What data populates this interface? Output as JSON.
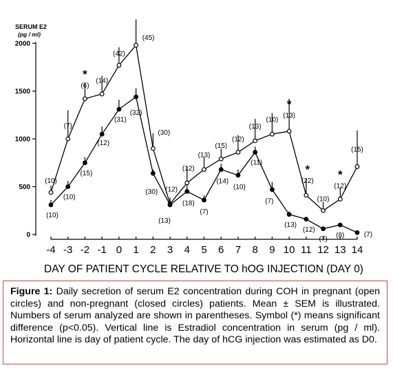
{
  "chart_data": {
    "type": "line",
    "title": "SERUM E2",
    "unit": "(pg / ml)",
    "xlabel": "DAY OF PATIENT CYCLE RELATIVE TO hOG INJECTION (DAY 0)",
    "ylabel": "",
    "xlim": [
      -4,
      14
    ],
    "ylim": [
      0,
      2000
    ],
    "yticks": [
      0,
      500,
      1000,
      1500,
      2000
    ],
    "x": [
      -4,
      -3,
      -2,
      -1,
      0,
      1,
      2,
      3,
      4,
      5,
      6,
      7,
      8,
      9,
      10,
      11,
      12,
      13,
      14
    ],
    "series": [
      {
        "marker": "open-circle",
        "values": [
          440,
          1000,
          1420,
          1470,
          1770,
          1980,
          900,
          320,
          540,
          680,
          790,
          860,
          980,
          1050,
          1080,
          410,
          250,
          370,
          710
        ],
        "err": [
          70,
          300,
          170,
          190,
          190,
          270,
          160,
          70,
          170,
          130,
          110,
          180,
          230,
          220,
          340,
          170,
          90,
          120,
          380
        ],
        "counts": [
          "(10)",
          "(7)",
          "(6)",
          "(14)",
          "(42)",
          "(45)",
          "(30)",
          "(12)",
          "(12)",
          "(13)",
          "(15)",
          "(12)",
          "(13)",
          "(10)",
          "(13)",
          "(22)",
          "(10)",
          "(12)",
          "(15)"
        ]
      },
      {
        "marker": "closed-circle",
        "values": [
          310,
          500,
          750,
          1050,
          1310,
          1440,
          640,
          310,
          450,
          360,
          680,
          620,
          860,
          470,
          210,
          160,
          60,
          100,
          20
        ],
        "err": [
          50,
          60,
          60,
          80,
          100,
          90,
          40,
          40,
          70,
          50,
          60,
          60,
          60,
          80,
          30,
          20,
          20,
          20,
          0
        ],
        "counts": [
          "(10)",
          "(10)",
          "(15)",
          "(12)",
          "(31)",
          "(32)",
          "(30)",
          "(13)",
          "(18)",
          "(7)",
          "(14)",
          "(10)",
          "(11)",
          "(7)",
          "(13)",
          "(12)",
          "(7)",
          "(8)",
          "(7)"
        ]
      }
    ],
    "significance_marks": [
      {
        "x": -2,
        "label": "*"
      },
      {
        "x": 10,
        "label": "*"
      },
      {
        "x": 11,
        "label": "*"
      },
      {
        "x": 13,
        "label": "*"
      }
    ]
  },
  "caption": {
    "label": "Figure 1:",
    "text": " Daily secretion of serum E2 concentration during COH in pregnant (open circles) and non-pregnant (closed circles) patients. Mean ± SEM is illustrated. Numbers of serum analyzed are shown in parentheses. Symbol (*) means significant difference (p<0.05). Vertical line is Estradiol concentration in serum (pg / ml). Horizontal line is day of patient cycle. The day of hCG injection was estimated as D0."
  }
}
